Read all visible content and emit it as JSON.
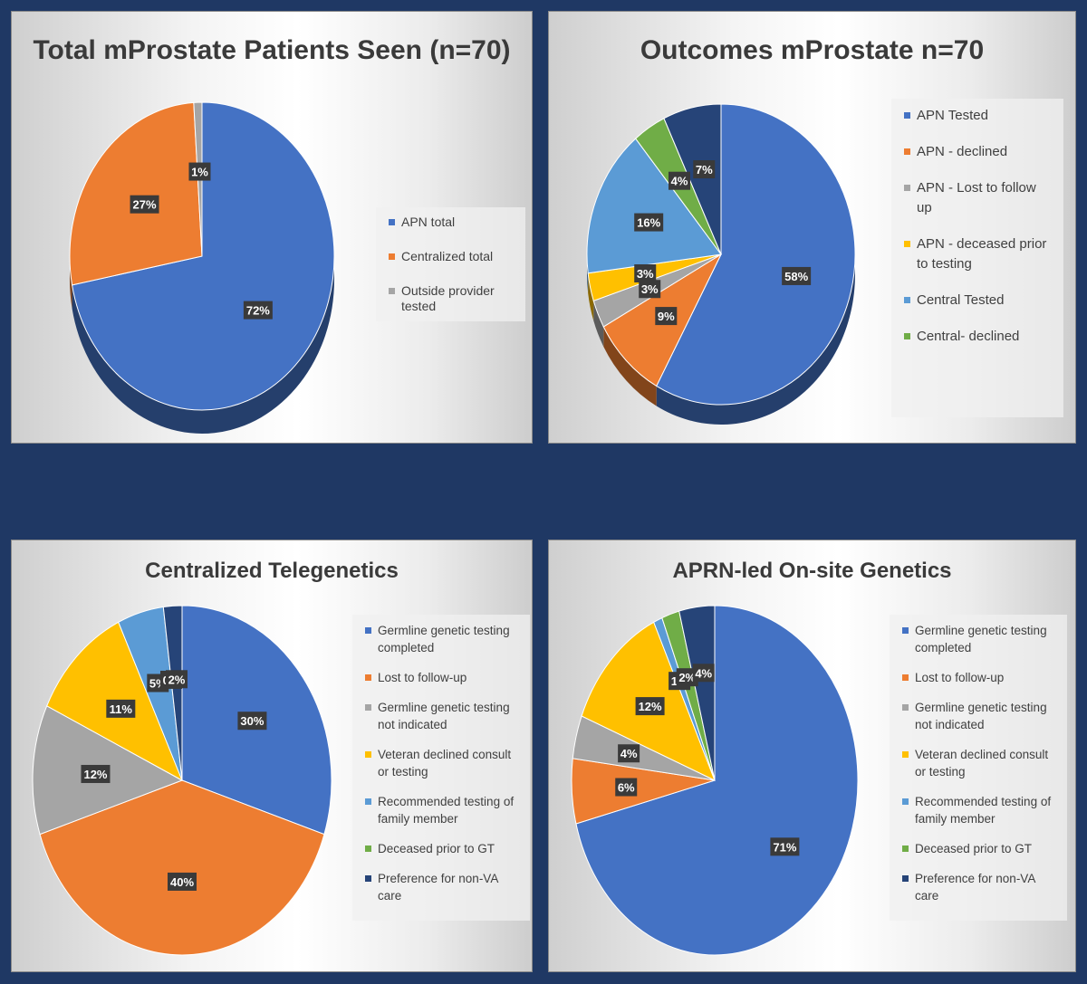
{
  "chart_data": [
    {
      "type": "pie",
      "title": "Total mProstate Patients Seen (n=70)",
      "legend_position": "right",
      "series": [
        {
          "name": "",
          "labels": [
            "APN total",
            "Centralized total",
            "Outside provider tested"
          ],
          "values": [
            72,
            27,
            1
          ],
          "data_labels": [
            "72%",
            "27%",
            "1%"
          ],
          "colors": [
            "#4472c4",
            "#ed7d31",
            "#a5a5a5"
          ]
        }
      ]
    },
    {
      "type": "pie",
      "title": "Outcomes mProstate n=70",
      "legend_position": "right",
      "series": [
        {
          "name": "",
          "labels": [
            "APN Tested",
            "APN - declined",
            "APN - Lost to follow up",
            "APN - deceased prior to testing",
            "Central Tested",
            "Central- declined",
            ""
          ],
          "values": [
            58,
            9,
            3,
            3,
            16,
            4,
            7
          ],
          "data_labels": [
            "58%",
            "9%",
            "3%",
            "3%",
            "16%",
            "4%",
            "7%"
          ],
          "colors": [
            "#4472c4",
            "#ed7d31",
            "#a5a5a5",
            "#ffc000",
            "#5b9bd5",
            "#70ad47",
            "#264478"
          ]
        }
      ]
    },
    {
      "type": "pie",
      "title": "Centralized Telegenetics",
      "legend_position": "right",
      "series": [
        {
          "name": "",
          "labels": [
            "Germline genetic testing completed",
            "Lost to follow-up",
            "Germline genetic testing not indicated",
            "Veteran declined consult or testing",
            "Recommended testing of family member",
            "Deceased prior to GT",
            "Preference for non-VA care"
          ],
          "values": [
            30,
            40,
            12,
            11,
            5,
            0,
            2
          ],
          "data_labels": [
            "30%",
            "40%",
            "12%",
            "11%",
            "5%",
            "0%",
            "2%"
          ],
          "colors": [
            "#4472c4",
            "#ed7d31",
            "#a5a5a5",
            "#ffc000",
            "#5b9bd5",
            "#70ad47",
            "#264478"
          ]
        }
      ]
    },
    {
      "type": "pie",
      "title": "APRN-led On-site Genetics",
      "legend_position": "right",
      "series": [
        {
          "name": "",
          "labels": [
            "Germline genetic testing completed",
            "Lost to follow-up",
            "Germline genetic testing not indicated",
            "Veteran declined consult or testing",
            "Recommended testing of family member",
            "Deceased prior to GT",
            "Preference for non-VA care"
          ],
          "values": [
            71,
            6,
            4,
            12,
            1,
            2,
            4
          ],
          "data_labels": [
            "71%",
            "6%",
            "4%",
            "12%",
            "1%",
            "2%",
            "4%"
          ],
          "colors": [
            "#4472c4",
            "#ed7d31",
            "#a5a5a5",
            "#ffc000",
            "#5b9bd5",
            "#70ad47",
            "#264478"
          ]
        }
      ]
    }
  ]
}
